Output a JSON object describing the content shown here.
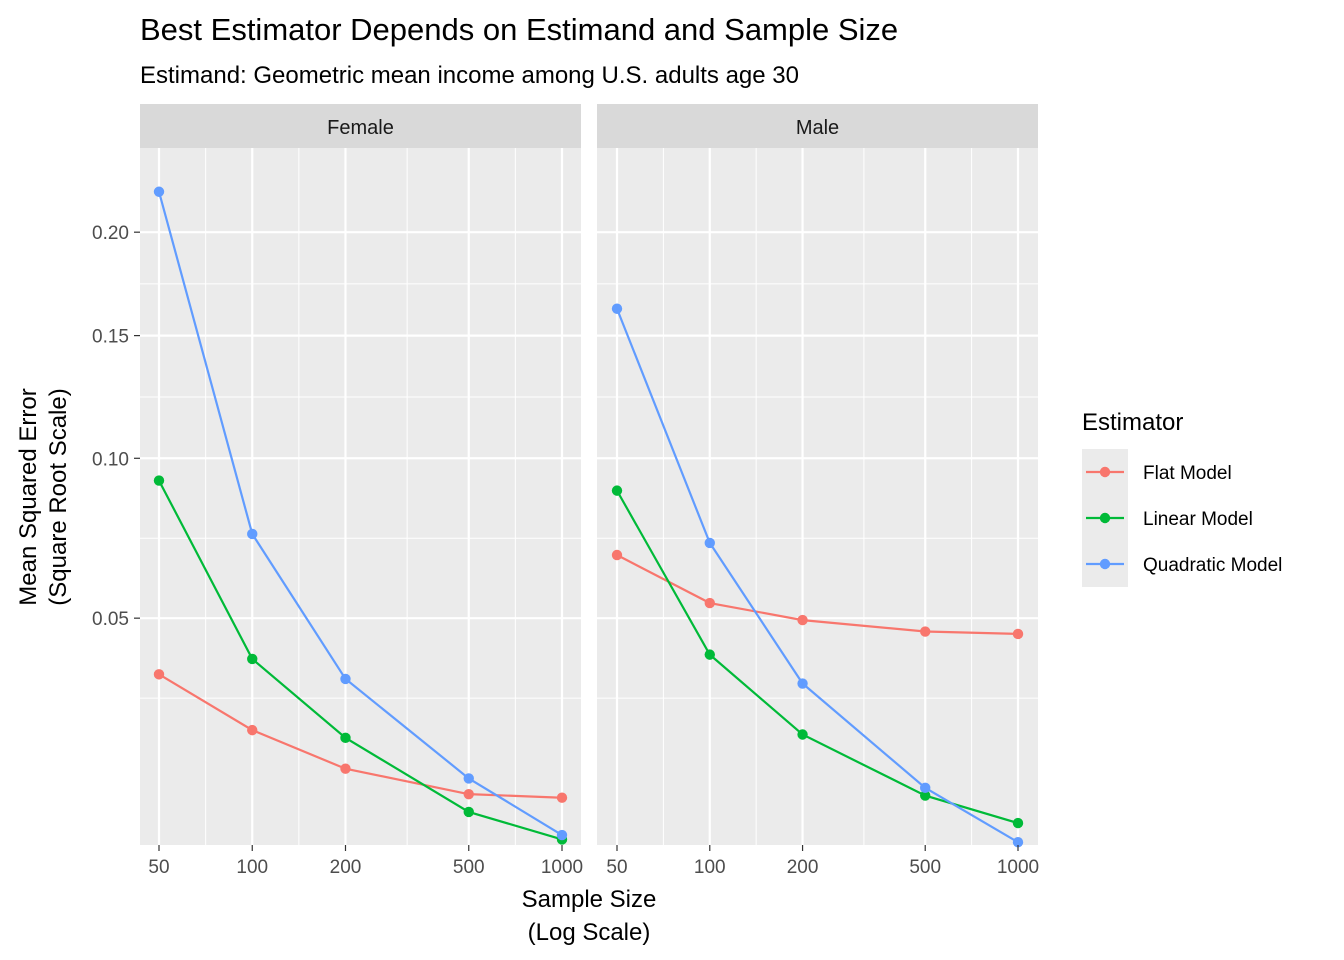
{
  "chart_data": {
    "type": "line",
    "title": "Best Estimator Depends on Estimand and Sample Size",
    "subtitle": "Estimand: Geometric mean income among U.S. adults age 30",
    "xlabel_line1": "Sample Size",
    "xlabel_line2": "(Log Scale)",
    "ylabel_line1": "Mean Squared Error",
    "ylabel_line2": "(Square Root Scale)",
    "x_scale": "log10",
    "y_scale": "sqrt",
    "x": [
      50,
      100,
      200,
      500,
      1000
    ],
    "x_ticks": [
      "50",
      "100",
      "200",
      "500",
      "1000"
    ],
    "y_ticks": [
      0.05,
      0.1,
      0.15,
      0.2
    ],
    "y_tick_labels": [
      "0.05",
      "0.10",
      "0.15",
      "0.20"
    ],
    "ylim": [
      0.0085,
      0.246
    ],
    "grid": true,
    "legend": {
      "title": "Estimator",
      "position": "right"
    },
    "panels": [
      {
        "name": "Female",
        "series": [
          {
            "name": "Flat Model",
            "color": "#F8766D",
            "values": [
              0.0365,
              0.0252,
              0.0186,
              0.0148,
              0.0143
            ]
          },
          {
            "name": "Linear Model",
            "color": "#00BA38",
            "values": [
              0.092,
              0.04,
              0.0238,
              0.0124,
              0.0091
            ]
          },
          {
            "name": "Quadratic Model",
            "color": "#619CFF",
            "values": [
              0.2215,
              0.0742,
              0.0355,
              0.0171,
              0.0096
            ]
          }
        ]
      },
      {
        "name": "Male",
        "series": [
          {
            "name": "Flat Model",
            "color": "#F8766D",
            "values": [
              0.0677,
              0.054,
              0.0495,
              0.0466,
              0.046
            ]
          },
          {
            "name": "Linear Model",
            "color": "#00BA38",
            "values": [
              0.0885,
              0.041,
              0.0244,
              0.0146,
              0.011
            ]
          },
          {
            "name": "Quadratic Model",
            "color": "#619CFF",
            "values": [
              0.1623,
              0.0714,
              0.0345,
              0.0157,
              0.0088
            ]
          }
        ]
      }
    ]
  }
}
